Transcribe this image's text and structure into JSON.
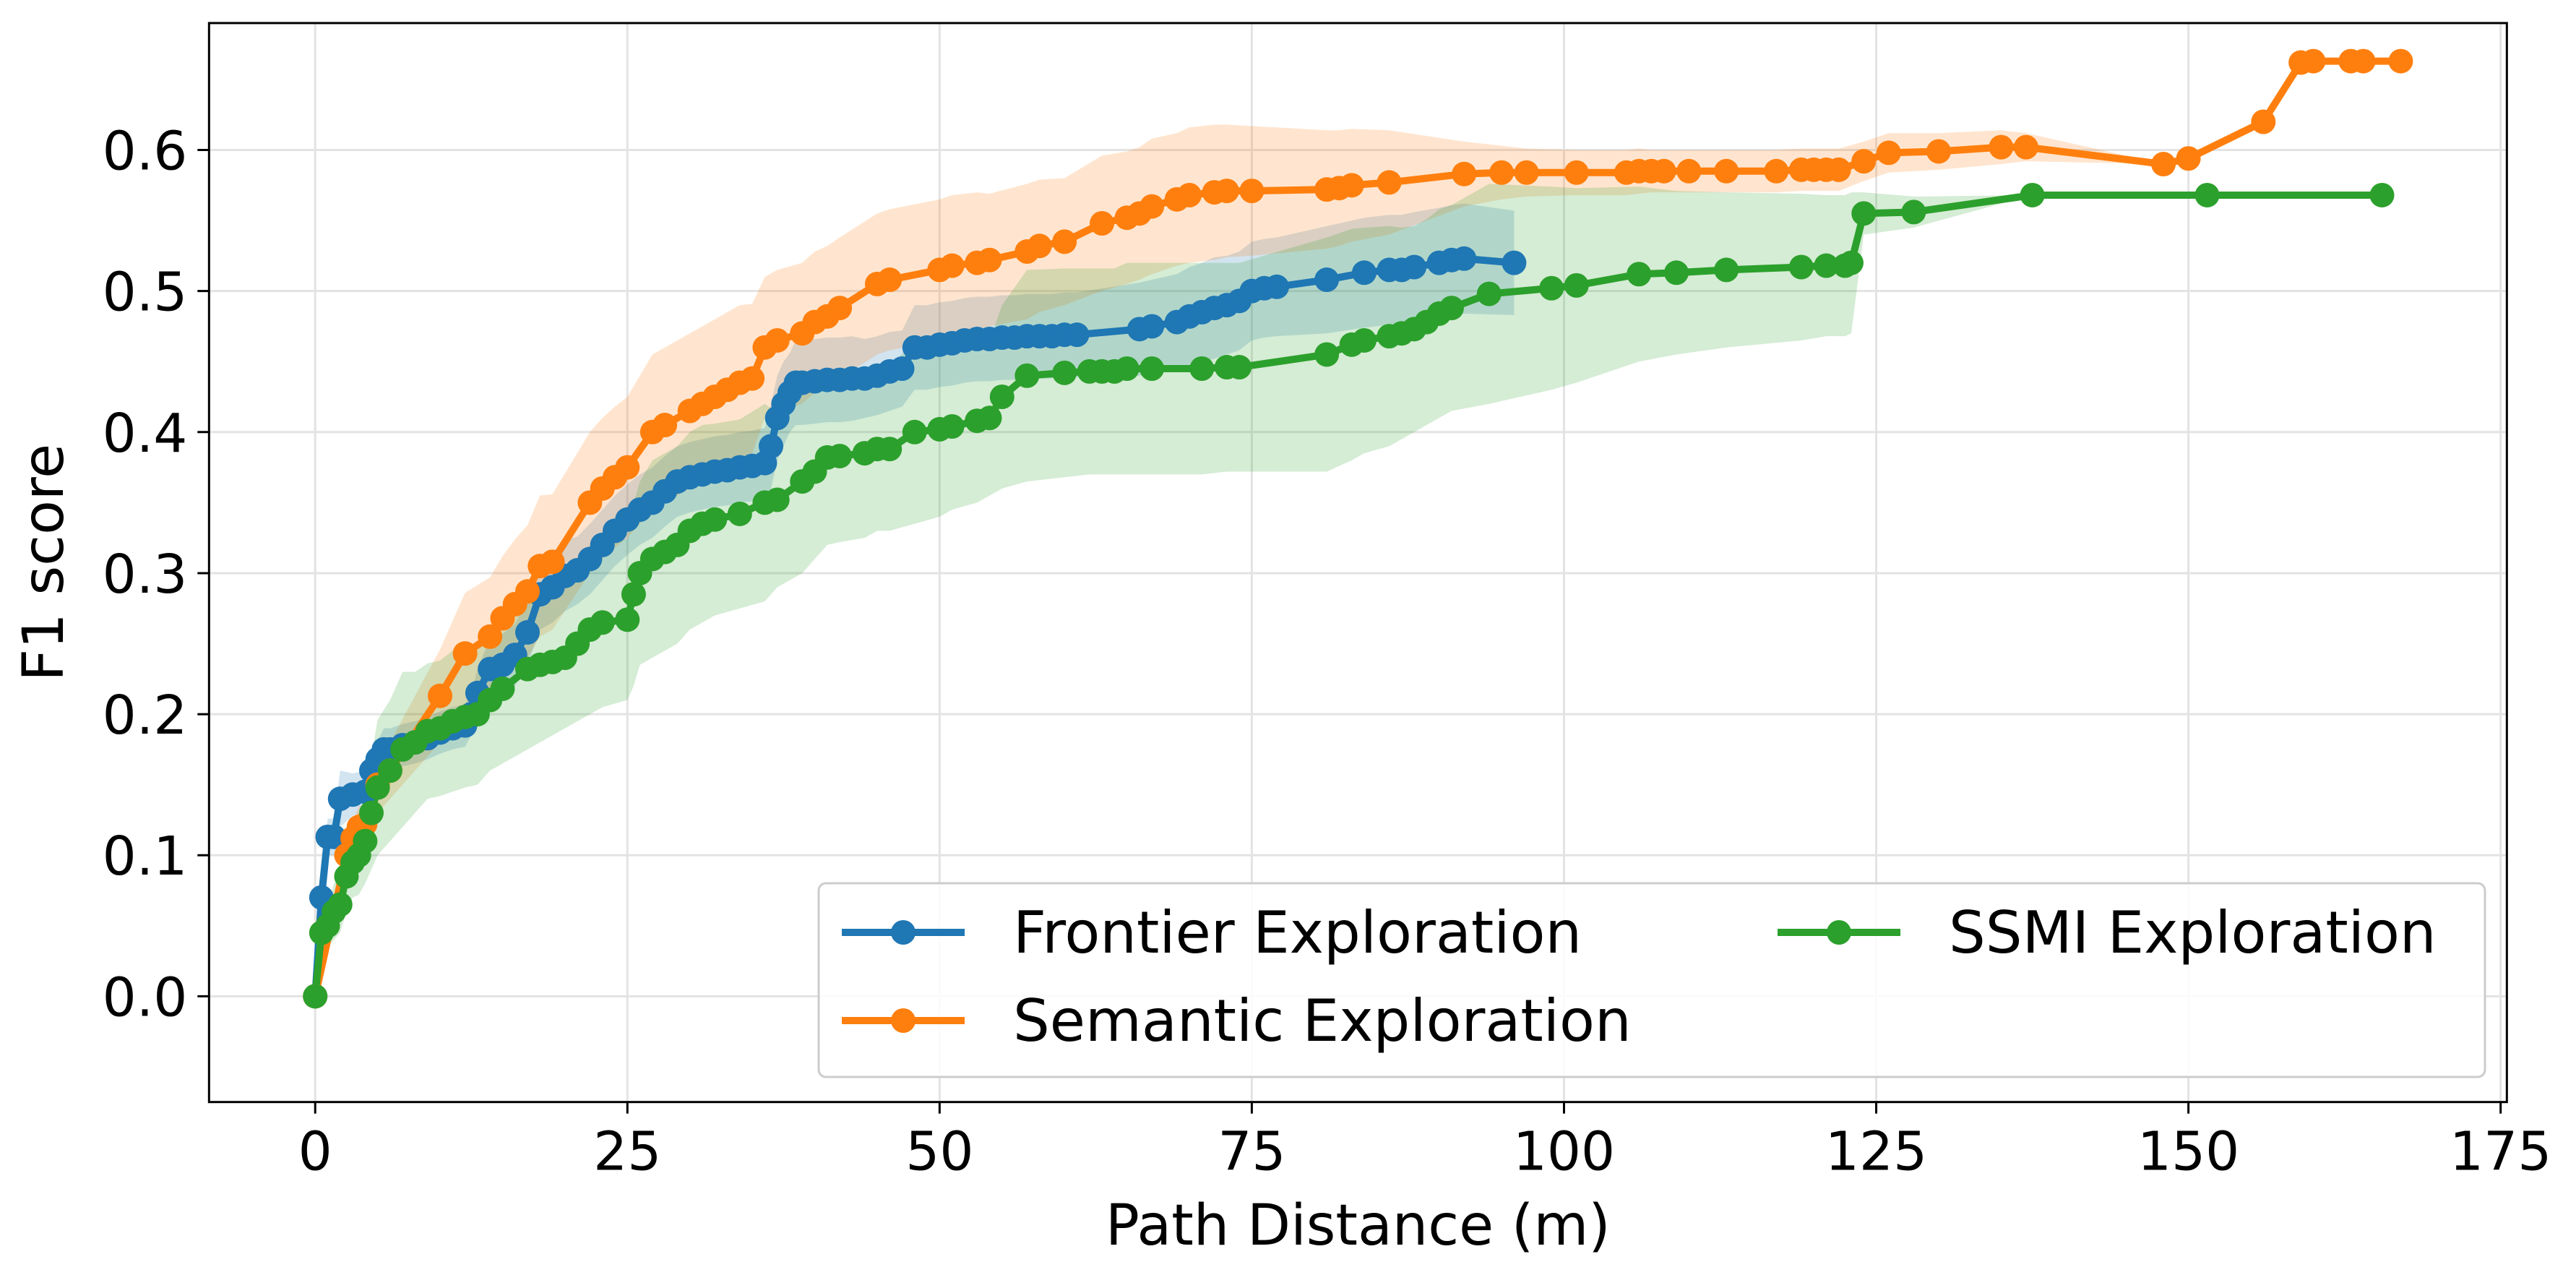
{
  "chart_data": {
    "type": "line",
    "xlabel": "Path Distance (m)",
    "ylabel": "F1 score",
    "xlim": [
      -8.5,
      175.5
    ],
    "ylim": [
      -0.075,
      0.69
    ],
    "xticks": [
      0,
      25,
      50,
      75,
      100,
      125,
      150,
      175
    ],
    "yticks": [
      0.0,
      0.1,
      0.2,
      0.3,
      0.4,
      0.5,
      0.6
    ],
    "xtick_labels": [
      "0",
      "25",
      "50",
      "75",
      "100",
      "125",
      "150",
      "175"
    ],
    "ytick_labels": [
      "0.0",
      "0.1",
      "0.2",
      "0.3",
      "0.4",
      "0.5",
      "0.6"
    ],
    "grid": true,
    "legend": {
      "placement": "lower-right",
      "columns": 2
    },
    "series": [
      {
        "name": "Frontier Exploration",
        "color": "#1f77b4",
        "x": [
          0,
          0.5,
          1.0,
          1.5,
          2.0,
          3.0,
          4.0,
          4.5,
          5.0,
          5.5,
          6.0,
          7.0,
          8.0,
          9.0,
          10.0,
          11.0,
          12.0,
          12.5,
          13.0,
          14.0,
          15.0,
          16.0,
          17.0,
          18.0,
          19.0,
          20.0,
          21.0,
          22.0,
          23.0,
          24.0,
          25.0,
          26.0,
          27.0,
          28.0,
          29.0,
          30.0,
          31.0,
          32.0,
          33.0,
          34.0,
          35.0,
          36.0,
          36.5,
          37.0,
          37.5,
          38.0,
          38.5,
          39.0,
          40.0,
          41.0,
          42.0,
          43.0,
          44.0,
          45.0,
          46.0,
          47.0,
          48.0,
          49.0,
          50.0,
          51.0,
          52.0,
          53.0,
          54.0,
          55.0,
          56.0,
          57.0,
          58.0,
          59.0,
          60.0,
          61.0,
          66.0,
          67.0,
          69.0,
          70.0,
          71.0,
          72.0,
          73.0,
          74.0,
          75.0,
          76.0,
          77.0,
          81.0,
          84.0,
          86.0,
          87.0,
          88.0,
          90.0,
          91.0,
          92.0,
          96.0
        ],
        "y": [
          0.0,
          0.07,
          0.113,
          0.113,
          0.14,
          0.143,
          0.145,
          0.16,
          0.168,
          0.175,
          0.175,
          0.178,
          0.18,
          0.183,
          0.187,
          0.19,
          0.192,
          0.2,
          0.215,
          0.232,
          0.235,
          0.242,
          0.258,
          0.285,
          0.29,
          0.298,
          0.302,
          0.31,
          0.32,
          0.33,
          0.338,
          0.345,
          0.35,
          0.358,
          0.365,
          0.368,
          0.37,
          0.372,
          0.373,
          0.375,
          0.376,
          0.378,
          0.39,
          0.41,
          0.42,
          0.428,
          0.435,
          0.435,
          0.436,
          0.437,
          0.437,
          0.438,
          0.438,
          0.44,
          0.443,
          0.445,
          0.46,
          0.46,
          0.462,
          0.463,
          0.465,
          0.466,
          0.466,
          0.467,
          0.467,
          0.468,
          0.468,
          0.468,
          0.469,
          0.469,
          0.473,
          0.475,
          0.478,
          0.482,
          0.485,
          0.488,
          0.49,
          0.493,
          0.5,
          0.502,
          0.503,
          0.508,
          0.513,
          0.515,
          0.515,
          0.517,
          0.52,
          0.522,
          0.523,
          0.52
        ],
        "band_lower": [
          0.0,
          0.06,
          0.1,
          0.1,
          0.12,
          0.128,
          0.13,
          0.145,
          0.155,
          0.16,
          0.16,
          0.163,
          0.165,
          0.168,
          0.172,
          0.175,
          0.177,
          0.185,
          0.198,
          0.21,
          0.213,
          0.22,
          0.235,
          0.26,
          0.265,
          0.273,
          0.278,
          0.285,
          0.295,
          0.305,
          0.313,
          0.32,
          0.325,
          0.333,
          0.34,
          0.343,
          0.345,
          0.347,
          0.348,
          0.35,
          0.351,
          0.353,
          0.36,
          0.38,
          0.39,
          0.4,
          0.405,
          0.405,
          0.406,
          0.407,
          0.407,
          0.408,
          0.41,
          0.412,
          0.415,
          0.418,
          0.43,
          0.43,
          0.432,
          0.433,
          0.435,
          0.436,
          0.436,
          0.437,
          0.437,
          0.438,
          0.438,
          0.438,
          0.439,
          0.439,
          0.44,
          0.442,
          0.444,
          0.447,
          0.45,
          0.452,
          0.455,
          0.458,
          0.465,
          0.467,
          0.468,
          0.47,
          0.474,
          0.476,
          0.476,
          0.478,
          0.481,
          0.483,
          0.484,
          0.483
        ],
        "band_upper": [
          0.0,
          0.08,
          0.126,
          0.126,
          0.16,
          0.158,
          0.16,
          0.175,
          0.181,
          0.19,
          0.19,
          0.193,
          0.195,
          0.198,
          0.202,
          0.205,
          0.207,
          0.215,
          0.232,
          0.254,
          0.257,
          0.264,
          0.281,
          0.31,
          0.315,
          0.323,
          0.326,
          0.335,
          0.345,
          0.355,
          0.363,
          0.37,
          0.375,
          0.383,
          0.39,
          0.393,
          0.395,
          0.397,
          0.398,
          0.4,
          0.401,
          0.403,
          0.42,
          0.44,
          0.45,
          0.456,
          0.465,
          0.465,
          0.466,
          0.467,
          0.467,
          0.468,
          0.466,
          0.468,
          0.471,
          0.472,
          0.49,
          0.49,
          0.492,
          0.493,
          0.495,
          0.496,
          0.496,
          0.497,
          0.497,
          0.498,
          0.498,
          0.498,
          0.499,
          0.499,
          0.506,
          0.508,
          0.512,
          0.517,
          0.52,
          0.524,
          0.525,
          0.528,
          0.535,
          0.537,
          0.538,
          0.546,
          0.552,
          0.554,
          0.554,
          0.556,
          0.559,
          0.561,
          0.562,
          0.557
        ]
      },
      {
        "name": "Semantic Exploration",
        "color": "#ff7f0e",
        "x": [
          0,
          2.5,
          3.0,
          3.5,
          4.0,
          5.0,
          6.0,
          10.0,
          12.0,
          14.0,
          15.0,
          16.0,
          17.0,
          18.0,
          19.0,
          22.0,
          23.0,
          24.0,
          25.0,
          27.0,
          28.0,
          30.0,
          31.0,
          32.0,
          33.0,
          34.0,
          35.0,
          36.0,
          37.0,
          39.0,
          40.0,
          41.0,
          42.0,
          45.0,
          46.0,
          50.0,
          51.0,
          53.0,
          54.0,
          57.0,
          58.0,
          60.0,
          63.0,
          65.0,
          66.0,
          67.0,
          69.0,
          70.0,
          72.0,
          73.0,
          75.0,
          81.0,
          82.0,
          83.0,
          86.0,
          92.0,
          95.0,
          97.0,
          101.0,
          105.0,
          106.0,
          107.0,
          108.0,
          110.0,
          113.0,
          117.0,
          119.0,
          120.0,
          121.0,
          122.0,
          124.0,
          126.0,
          130.0,
          135.0,
          137.0,
          148.0,
          150.0,
          156.0,
          159.0,
          160.0,
          163.0,
          164.0,
          167.0
        ],
        "y": [
          0.0,
          0.1,
          0.112,
          0.12,
          0.122,
          0.15,
          0.16,
          0.213,
          0.243,
          0.255,
          0.268,
          0.278,
          0.287,
          0.305,
          0.308,
          0.35,
          0.36,
          0.368,
          0.375,
          0.4,
          0.405,
          0.415,
          0.42,
          0.425,
          0.43,
          0.435,
          0.438,
          0.46,
          0.465,
          0.47,
          0.478,
          0.482,
          0.488,
          0.505,
          0.508,
          0.515,
          0.518,
          0.52,
          0.522,
          0.528,
          0.532,
          0.535,
          0.548,
          0.552,
          0.555,
          0.56,
          0.565,
          0.568,
          0.57,
          0.571,
          0.571,
          0.572,
          0.573,
          0.575,
          0.577,
          0.583,
          0.584,
          0.584,
          0.584,
          0.584,
          0.585,
          0.585,
          0.585,
          0.585,
          0.585,
          0.585,
          0.586,
          0.586,
          0.586,
          0.586,
          0.592,
          0.598,
          0.599,
          0.602,
          0.602,
          0.59,
          0.594,
          0.62,
          0.662,
          0.663,
          0.663,
          0.663,
          0.663
        ],
        "band_lower": [
          0.0,
          0.09,
          0.1,
          0.105,
          0.11,
          0.13,
          0.14,
          0.18,
          0.2,
          0.213,
          0.224,
          0.232,
          0.24,
          0.255,
          0.26,
          0.3,
          0.31,
          0.318,
          0.325,
          0.345,
          0.35,
          0.36,
          0.365,
          0.37,
          0.375,
          0.38,
          0.385,
          0.41,
          0.415,
          0.42,
          0.428,
          0.432,
          0.438,
          0.455,
          0.458,
          0.465,
          0.468,
          0.47,
          0.475,
          0.48,
          0.485,
          0.49,
          0.5,
          0.505,
          0.508,
          0.512,
          0.518,
          0.52,
          0.522,
          0.524,
          0.525,
          0.53,
          0.532,
          0.535,
          0.54,
          0.56,
          0.565,
          0.567,
          0.568,
          0.568,
          0.569,
          0.57,
          0.57,
          0.57,
          0.57,
          0.57,
          0.571,
          0.571,
          0.571,
          0.571,
          0.578,
          0.584,
          0.586,
          0.59,
          0.592,
          0.59,
          0.594,
          0.62,
          0.662,
          0.663,
          0.663,
          0.663,
          0.663
        ],
        "band_upper": [
          0.0,
          0.11,
          0.124,
          0.135,
          0.134,
          0.17,
          0.18,
          0.246,
          0.286,
          0.297,
          0.312,
          0.324,
          0.334,
          0.355,
          0.356,
          0.4,
          0.41,
          0.418,
          0.425,
          0.455,
          0.46,
          0.47,
          0.475,
          0.48,
          0.485,
          0.49,
          0.491,
          0.51,
          0.515,
          0.52,
          0.528,
          0.532,
          0.538,
          0.555,
          0.558,
          0.565,
          0.568,
          0.57,
          0.569,
          0.576,
          0.579,
          0.58,
          0.596,
          0.599,
          0.602,
          0.608,
          0.612,
          0.616,
          0.618,
          0.618,
          0.617,
          0.614,
          0.614,
          0.615,
          0.614,
          0.606,
          0.603,
          0.601,
          0.6,
          0.6,
          0.601,
          0.6,
          0.6,
          0.6,
          0.6,
          0.6,
          0.601,
          0.601,
          0.601,
          0.601,
          0.606,
          0.612,
          0.612,
          0.614,
          0.612,
          0.59,
          0.594,
          0.62,
          0.662,
          0.663,
          0.663,
          0.663,
          0.663
        ]
      },
      {
        "name": "SSMI Exploration",
        "color": "#2ca02c",
        "x": [
          0,
          0.5,
          1.0,
          1.5,
          2.0,
          2.5,
          3.0,
          3.5,
          4.0,
          4.5,
          5.0,
          6.0,
          7.0,
          8.0,
          9.0,
          10.0,
          11.0,
          12.0,
          13.0,
          14.0,
          15.0,
          17.0,
          18.0,
          19.0,
          20.0,
          21.0,
          22.0,
          23.0,
          25.0,
          25.5,
          26.0,
          27.0,
          28.0,
          29.0,
          30.0,
          31.0,
          32.0,
          34.0,
          36.0,
          37.0,
          39.0,
          40.0,
          41.0,
          42.0,
          44.0,
          45.0,
          46.0,
          48.0,
          50.0,
          51.0,
          53.0,
          54.0,
          55.0,
          57.0,
          60.0,
          62.0,
          63.0,
          64.0,
          65.0,
          67.0,
          71.0,
          73.0,
          74.0,
          81.0,
          83.0,
          84.0,
          86.0,
          87.0,
          88.0,
          89.0,
          90.0,
          91.0,
          94.0,
          99.0,
          101.0,
          106.0,
          109.0,
          113.0,
          119.0,
          121.0,
          122.5,
          123.0,
          124.0,
          128.0,
          137.5,
          151.5,
          165.5
        ],
        "y": [
          0.0,
          0.045,
          0.05,
          0.06,
          0.065,
          0.085,
          0.095,
          0.1,
          0.11,
          0.13,
          0.148,
          0.16,
          0.175,
          0.18,
          0.188,
          0.19,
          0.195,
          0.198,
          0.2,
          0.21,
          0.218,
          0.232,
          0.235,
          0.237,
          0.24,
          0.25,
          0.26,
          0.265,
          0.267,
          0.285,
          0.3,
          0.31,
          0.315,
          0.32,
          0.33,
          0.335,
          0.338,
          0.342,
          0.35,
          0.352,
          0.365,
          0.372,
          0.382,
          0.383,
          0.385,
          0.388,
          0.388,
          0.4,
          0.402,
          0.404,
          0.408,
          0.41,
          0.425,
          0.44,
          0.442,
          0.443,
          0.443,
          0.443,
          0.445,
          0.445,
          0.445,
          0.446,
          0.446,
          0.455,
          0.462,
          0.465,
          0.468,
          0.47,
          0.473,
          0.478,
          0.484,
          0.488,
          0.498,
          0.502,
          0.504,
          0.512,
          0.513,
          0.515,
          0.517,
          0.518,
          0.518,
          0.52,
          0.555,
          0.556,
          0.568,
          0.568,
          0.568
        ],
        "band_lower": [
          0.0,
          0.03,
          0.035,
          0.04,
          0.045,
          0.06,
          0.07,
          0.072,
          0.08,
          0.09,
          0.1,
          0.11,
          0.12,
          0.13,
          0.14,
          0.142,
          0.145,
          0.148,
          0.15,
          0.16,
          0.165,
          0.175,
          0.18,
          0.185,
          0.19,
          0.195,
          0.2,
          0.205,
          0.21,
          0.22,
          0.235,
          0.24,
          0.245,
          0.25,
          0.26,
          0.265,
          0.27,
          0.275,
          0.28,
          0.29,
          0.3,
          0.31,
          0.32,
          0.322,
          0.325,
          0.33,
          0.33,
          0.335,
          0.34,
          0.345,
          0.35,
          0.355,
          0.36,
          0.365,
          0.368,
          0.37,
          0.37,
          0.37,
          0.37,
          0.37,
          0.37,
          0.372,
          0.372,
          0.372,
          0.38,
          0.385,
          0.39,
          0.395,
          0.4,
          0.405,
          0.41,
          0.415,
          0.42,
          0.43,
          0.435,
          0.45,
          0.455,
          0.46,
          0.465,
          0.468,
          0.468,
          0.47,
          0.54,
          0.545,
          0.568,
          0.568,
          0.568
        ],
        "band_upper": [
          0.0,
          0.06,
          0.065,
          0.08,
          0.085,
          0.11,
          0.12,
          0.128,
          0.14,
          0.17,
          0.196,
          0.21,
          0.23,
          0.23,
          0.236,
          0.238,
          0.245,
          0.248,
          0.25,
          0.26,
          0.271,
          0.289,
          0.29,
          0.289,
          0.29,
          0.305,
          0.32,
          0.325,
          0.324,
          0.35,
          0.365,
          0.38,
          0.385,
          0.39,
          0.4,
          0.405,
          0.406,
          0.409,
          0.42,
          0.414,
          0.43,
          0.434,
          0.444,
          0.444,
          0.445,
          0.446,
          0.446,
          0.465,
          0.464,
          0.463,
          0.466,
          0.465,
          0.49,
          0.515,
          0.516,
          0.516,
          0.516,
          0.516,
          0.52,
          0.52,
          0.52,
          0.52,
          0.52,
          0.538,
          0.544,
          0.545,
          0.546,
          0.545,
          0.546,
          0.551,
          0.558,
          0.561,
          0.576,
          0.574,
          0.573,
          0.574,
          0.571,
          0.57,
          0.569,
          0.568,
          0.568,
          0.57,
          0.57,
          0.567,
          0.568,
          0.568,
          0.568
        ]
      }
    ]
  }
}
